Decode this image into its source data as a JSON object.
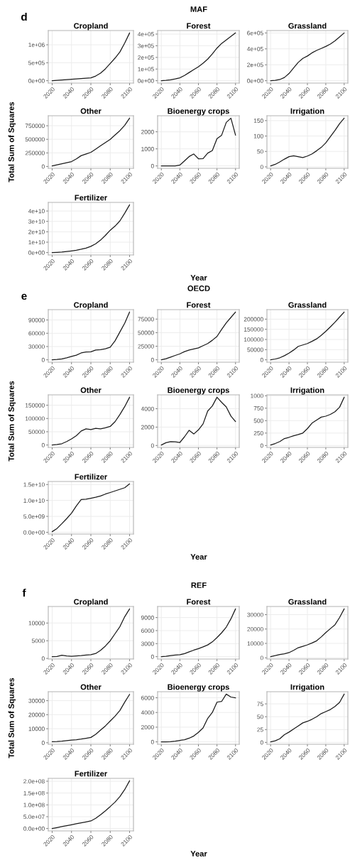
{
  "chart_data": [
    {
      "type": "line",
      "title": "Cropland",
      "annotations": [
        "d",
        "MAF"
      ],
      "x": [
        2020,
        2025,
        2030,
        2035,
        2040,
        2045,
        2050,
        2055,
        2060,
        2065,
        2070,
        2075,
        2080,
        2085,
        2090,
        2095,
        2100
      ],
      "series": [
        {
          "color": "#1a1a1a",
          "values": [
            0,
            10000,
            20000,
            30000,
            40000,
            50000,
            60000,
            70000,
            80000,
            130000,
            210000,
            330000,
            480000,
            630000,
            800000,
            1050000,
            1330000
          ]
        }
      ],
      "xlim": [
        2016,
        2104
      ],
      "xticks": [
        2020,
        2040,
        2060,
        2080,
        2100
      ],
      "ylim": [
        -66500,
        1396500
      ],
      "yticks": [
        {
          "value": 0,
          "label": "0e+00"
        },
        {
          "value": 500000,
          "label": "5e+05"
        },
        {
          "value": 1000000,
          "label": "1e+06"
        }
      ],
      "grid": true
    },
    {
      "type": "line",
      "title": "Forest",
      "x": [
        2020,
        2025,
        2030,
        2035,
        2040,
        2045,
        2050,
        2055,
        2060,
        2065,
        2070,
        2075,
        2080,
        2085,
        2090,
        2095,
        2100
      ],
      "series": [
        {
          "color": "#1a1a1a",
          "values": [
            0,
            3000,
            8000,
            15000,
            25000,
            45000,
            70000,
            95000,
            120000,
            150000,
            185000,
            230000,
            280000,
            320000,
            350000,
            380000,
            410000
          ]
        }
      ],
      "xlim": [
        2016,
        2104
      ],
      "xticks": [
        2020,
        2040,
        2060,
        2080,
        2100
      ],
      "ylim": [
        -20500,
        430500
      ],
      "yticks": [
        {
          "value": 0,
          "label": "0e+00"
        },
        {
          "value": 100000,
          "label": "1e+05"
        },
        {
          "value": 200000,
          "label": "2e+05"
        },
        {
          "value": 300000,
          "label": "3e+05"
        },
        {
          "value": 400000,
          "label": "4e+05"
        }
      ],
      "grid": true
    },
    {
      "type": "line",
      "title": "Grassland",
      "x": [
        2020,
        2025,
        2030,
        2035,
        2040,
        2045,
        2050,
        2055,
        2060,
        2065,
        2070,
        2075,
        2080,
        2085,
        2090,
        2095,
        2100
      ],
      "series": [
        {
          "color": "#1a1a1a",
          "values": [
            0,
            5000,
            15000,
            40000,
            90000,
            160000,
            230000,
            280000,
            310000,
            350000,
            380000,
            405000,
            430000,
            460000,
            500000,
            550000,
            600000
          ]
        }
      ],
      "xlim": [
        2016,
        2104
      ],
      "xticks": [
        2020,
        2040,
        2060,
        2080,
        2100
      ],
      "ylim": [
        -30000,
        630000
      ],
      "yticks": [
        {
          "value": 0,
          "label": "0e+00"
        },
        {
          "value": 200000,
          "label": "2e+05"
        },
        {
          "value": 400000,
          "label": "4e+05"
        },
        {
          "value": 600000,
          "label": "6e+05"
        }
      ],
      "grid": true
    },
    {
      "type": "line",
      "title": "Other",
      "ylabel": "Total Sum of Squares",
      "x": [
        2020,
        2025,
        2030,
        2035,
        2040,
        2045,
        2050,
        2055,
        2060,
        2065,
        2070,
        2075,
        2080,
        2085,
        2090,
        2095,
        2100
      ],
      "series": [
        {
          "color": "#1a1a1a",
          "values": [
            10000,
            30000,
            50000,
            70000,
            90000,
            140000,
            200000,
            230000,
            260000,
            320000,
            380000,
            440000,
            500000,
            580000,
            660000,
            760000,
            890000
          ]
        }
      ],
      "xlim": [
        2016,
        2104
      ],
      "xticks": [
        2020,
        2040,
        2060,
        2080,
        2100
      ],
      "ylim": [
        -34000,
        934000
      ],
      "yticks": [
        0,
        250000,
        500000,
        750000
      ],
      "grid": true
    },
    {
      "type": "line",
      "title": "Bioenergy crops",
      "x": [
        2020,
        2025,
        2030,
        2035,
        2040,
        2045,
        2050,
        2055,
        2060,
        2065,
        2070,
        2075,
        2080,
        2085,
        2090,
        2095,
        2100
      ],
      "series": [
        {
          "color": "#1a1a1a",
          "values": [
            0,
            0,
            0,
            0,
            50,
            300,
            550,
            700,
            420,
            430,
            750,
            900,
            1600,
            1800,
            2550,
            2800,
            1800
          ]
        }
      ],
      "xlim": [
        2016,
        2104
      ],
      "xticks": [
        2020,
        2040,
        2060,
        2080,
        2100
      ],
      "ylim": [
        -140,
        2940
      ],
      "yticks": [
        0,
        1000,
        2000
      ],
      "grid": true
    },
    {
      "type": "line",
      "title": "Irrigation",
      "x": [
        2020,
        2025,
        2030,
        2035,
        2040,
        2045,
        2050,
        2055,
        2060,
        2065,
        2070,
        2075,
        2080,
        2085,
        2090,
        2095,
        2100
      ],
      "series": [
        {
          "color": "#1a1a1a",
          "values": [
            3,
            8,
            16,
            25,
            33,
            36,
            33,
            30,
            35,
            42,
            52,
            63,
            78,
            98,
            118,
            140,
            158
          ]
        }
      ],
      "xlim": [
        2016,
        2104
      ],
      "xticks": [
        2020,
        2040,
        2060,
        2080,
        2100
      ],
      "ylim": [
        -4.75,
        165.75
      ],
      "yticks": [
        0,
        50,
        100,
        150
      ],
      "grid": true
    },
    {
      "type": "line",
      "title": "Fertilizer",
      "annotations": [
        "Year"
      ],
      "x": [
        2020,
        2025,
        2030,
        2035,
        2040,
        2045,
        2050,
        2055,
        2060,
        2065,
        2070,
        2075,
        2080,
        2085,
        2090,
        2095,
        2100
      ],
      "series": [
        {
          "color": "#1a1a1a",
          "values": [
            0,
            200000000,
            500000000,
            1000000000,
            1600000000,
            2300000000,
            3200000000,
            4300000000,
            6000000000,
            8500000000,
            12000000000,
            16500000000,
            21500000000,
            25500000000,
            30500000000,
            38000000000,
            46000000000
          ]
        }
      ],
      "xlim": [
        2016,
        2104
      ],
      "xticks": [
        2020,
        2040,
        2060,
        2080,
        2100
      ],
      "ylim": [
        -2300000000,
        48300000000
      ],
      "yticks": [
        {
          "value": 0,
          "label": "0e+00"
        },
        {
          "value": 10000000000,
          "label": "1e+10"
        },
        {
          "value": 20000000000,
          "label": "2e+10"
        },
        {
          "value": 30000000000,
          "label": "3e+10"
        },
        {
          "value": 40000000000,
          "label": "4e+10"
        }
      ],
      "grid": true
    },
    {
      "type": "line",
      "title": "Cropland",
      "annotations": [
        "e",
        "OECD"
      ],
      "x": [
        2020,
        2025,
        2030,
        2035,
        2040,
        2045,
        2050,
        2055,
        2060,
        2065,
        2070,
        2075,
        2080,
        2085,
        2090,
        2095,
        2100
      ],
      "series": [
        {
          "color": "#1a1a1a",
          "values": [
            0,
            800,
            2000,
            4500,
            7500,
            10500,
            15500,
            17500,
            18000,
            22000,
            23000,
            25000,
            28500,
            43000,
            63000,
            83000,
            108000
          ]
        }
      ],
      "xlim": [
        2016,
        2104
      ],
      "xticks": [
        2020,
        2040,
        2060,
        2080,
        2100
      ],
      "ylim": [
        -5400,
        113400
      ],
      "yticks": [
        0,
        30000,
        60000,
        90000
      ],
      "grid": true
    },
    {
      "type": "line",
      "title": "Forest",
      "x": [
        2020,
        2025,
        2030,
        2035,
        2040,
        2045,
        2050,
        2055,
        2060,
        2065,
        2070,
        2075,
        2080,
        2085,
        2090,
        2095,
        2100
      ],
      "series": [
        {
          "color": "#1a1a1a",
          "values": [
            0,
            2000,
            5000,
            8000,
            11000,
            15000,
            18000,
            20000,
            22000,
            26000,
            30000,
            36000,
            43000,
            56000,
            68000,
            78000,
            88000
          ]
        }
      ],
      "xlim": [
        2016,
        2104
      ],
      "xticks": [
        2020,
        2040,
        2060,
        2080,
        2100
      ],
      "ylim": [
        -4400,
        92400
      ],
      "yticks": [
        0,
        25000,
        50000,
        75000
      ],
      "grid": true
    },
    {
      "type": "line",
      "title": "Grassland",
      "x": [
        2020,
        2025,
        2030,
        2035,
        2040,
        2045,
        2050,
        2055,
        2060,
        2065,
        2070,
        2075,
        2080,
        2085,
        2090,
        2095,
        2100
      ],
      "series": [
        {
          "color": "#1a1a1a",
          "values": [
            0,
            4000,
            10000,
            20000,
            33000,
            48000,
            66000,
            73000,
            80000,
            91000,
            103000,
            120000,
            140000,
            162000,
            185000,
            210000,
            235000
          ]
        }
      ],
      "xlim": [
        2016,
        2104
      ],
      "xticks": [
        2020,
        2040,
        2060,
        2080,
        2100
      ],
      "ylim": [
        -11750,
        246750
      ],
      "yticks": [
        0,
        50000,
        100000,
        150000,
        200000
      ],
      "grid": true
    },
    {
      "type": "line",
      "title": "Other",
      "ylabel": "Total Sum of Squares",
      "x": [
        2020,
        2025,
        2030,
        2035,
        2040,
        2045,
        2050,
        2055,
        2060,
        2065,
        2070,
        2075,
        2080,
        2085,
        2090,
        2095,
        2100
      ],
      "series": [
        {
          "color": "#1a1a1a",
          "values": [
            0,
            2000,
            5000,
            13000,
            23000,
            35000,
            53000,
            61000,
            58000,
            63000,
            61000,
            65000,
            70000,
            88000,
            115000,
            145000,
            180000
          ]
        }
      ],
      "xlim": [
        2016,
        2104
      ],
      "xticks": [
        2020,
        2040,
        2060,
        2080,
        2100
      ],
      "ylim": [
        -9000,
        189000
      ],
      "yticks": [
        0,
        50000,
        100000,
        150000
      ],
      "grid": true
    },
    {
      "type": "line",
      "title": "Bioenergy crops",
      "x": [
        2020,
        2025,
        2030,
        2035,
        2040,
        2045,
        2050,
        2055,
        2060,
        2065,
        2070,
        2075,
        2080,
        2085,
        2090,
        2095,
        2100
      ],
      "series": [
        {
          "color": "#1a1a1a",
          "values": [
            50,
            300,
            420,
            400,
            330,
            950,
            1650,
            1250,
            1700,
            2350,
            3750,
            4300,
            5250,
            4700,
            4200,
            3200,
            2600
          ]
        }
      ],
      "xlim": [
        2016,
        2104
      ],
      "xticks": [
        2020,
        2040,
        2060,
        2080,
        2100
      ],
      "ylim": [
        -210,
        5510
      ],
      "yticks": [
        0,
        2000,
        4000
      ],
      "grid": true
    },
    {
      "type": "line",
      "title": "Irrigation",
      "x": [
        2020,
        2025,
        2030,
        2035,
        2040,
        2045,
        2050,
        2055,
        2060,
        2065,
        2070,
        2075,
        2080,
        2085,
        2090,
        2095,
        2100
      ],
      "series": [
        {
          "color": "#1a1a1a",
          "values": [
            10,
            40,
            80,
            140,
            165,
            195,
            220,
            250,
            340,
            450,
            510,
            570,
            590,
            625,
            680,
            770,
            970
          ]
        }
      ],
      "xlim": [
        2016,
        2104
      ],
      "xticks": [
        2020,
        2040,
        2060,
        2080,
        2100
      ],
      "ylim": [
        -38,
        1018
      ],
      "yticks": [
        0,
        250,
        500,
        750,
        1000
      ],
      "grid": true
    },
    {
      "type": "line",
      "title": "Fertilizer",
      "annotations": [
        "Year"
      ],
      "x": [
        2020,
        2025,
        2030,
        2035,
        2040,
        2045,
        2050,
        2055,
        2060,
        2065,
        2070,
        2075,
        2080,
        2085,
        2090,
        2095,
        2100
      ],
      "series": [
        {
          "color": "#1a1a1a",
          "values": [
            200000000,
            1200000000,
            2700000000,
            4300000000,
            6000000000,
            8300000000,
            10300000000,
            10400000000,
            10700000000,
            11000000000,
            11400000000,
            12000000000,
            12500000000,
            13000000000,
            13500000000,
            14000000000,
            15200000000
          ]
        }
      ],
      "xlim": [
        2016,
        2104
      ],
      "xticks": [
        2020,
        2040,
        2060,
        2080,
        2100
      ],
      "ylim": [
        -550000000,
        15950000000
      ],
      "yticks": [
        {
          "value": 0,
          "label": "0.0e+00"
        },
        {
          "value": 5000000000,
          "label": "5.0e+09"
        },
        {
          "value": 10000000000,
          "label": "1.0e+10"
        },
        {
          "value": 15000000000,
          "label": "1.5e+10"
        }
      ],
      "grid": true
    },
    {
      "type": "line",
      "title": "Cropland",
      "annotations": [
        "f",
        "REF"
      ],
      "x": [
        2020,
        2025,
        2030,
        2035,
        2040,
        2045,
        2050,
        2055,
        2060,
        2065,
        2070,
        2075,
        2080,
        2085,
        2090,
        2095,
        2100
      ],
      "series": [
        {
          "color": "#1a1a1a",
          "values": [
            500,
            550,
            900,
            700,
            600,
            700,
            800,
            950,
            1050,
            1400,
            2300,
            3500,
            5000,
            7000,
            9000,
            11800,
            14000
          ]
        }
      ],
      "xlim": [
        2016,
        2104
      ],
      "xticks": [
        2020,
        2040,
        2060,
        2080,
        2100
      ],
      "ylim": [
        -175,
        14675
      ],
      "yticks": [
        0,
        5000,
        10000
      ],
      "grid": true
    },
    {
      "type": "line",
      "title": "Forest",
      "x": [
        2020,
        2025,
        2030,
        2035,
        2040,
        2045,
        2050,
        2055,
        2060,
        2065,
        2070,
        2075,
        2080,
        2085,
        2090,
        2095,
        2100
      ],
      "series": [
        {
          "color": "#1a1a1a",
          "values": [
            0,
            100,
            250,
            350,
            450,
            700,
            1100,
            1500,
            1850,
            2250,
            2700,
            3400,
            4400,
            5500,
            6800,
            8700,
            11000
          ]
        }
      ],
      "xlim": [
        2016,
        2104
      ],
      "xticks": [
        2020,
        2040,
        2060,
        2080,
        2100
      ],
      "ylim": [
        -550,
        11550
      ],
      "yticks": [
        0,
        3000,
        6000,
        9000
      ],
      "grid": true
    },
    {
      "type": "line",
      "title": "Grassland",
      "x": [
        2020,
        2025,
        2030,
        2035,
        2040,
        2045,
        2050,
        2055,
        2060,
        2065,
        2070,
        2075,
        2080,
        2085,
        2090,
        2095,
        2100
      ],
      "series": [
        {
          "color": "#1a1a1a",
          "values": [
            800,
            1500,
            2300,
            2800,
            3600,
            5200,
            7000,
            8000,
            9000,
            10300,
            11800,
            14500,
            17500,
            20300,
            23000,
            28000,
            34000
          ]
        }
      ],
      "xlim": [
        2016,
        2104
      ],
      "xticks": [
        2020,
        2040,
        2060,
        2080,
        2100
      ],
      "ylim": [
        -860,
        35660
      ],
      "yticks": [
        0,
        10000,
        20000,
        30000
      ],
      "grid": true
    },
    {
      "type": "line",
      "title": "Other",
      "ylabel": "Total Sum of Squares",
      "x": [
        2020,
        2025,
        2030,
        2035,
        2040,
        2045,
        2050,
        2055,
        2060,
        2065,
        2070,
        2075,
        2080,
        2085,
        2090,
        2095,
        2100
      ],
      "series": [
        {
          "color": "#1a1a1a",
          "values": [
            800,
            900,
            1100,
            1500,
            1900,
            2100,
            2600,
            3200,
            3800,
            6000,
            9000,
            12000,
            15500,
            19000,
            23000,
            29000,
            34500
          ]
        }
      ],
      "xlim": [
        2016,
        2104
      ],
      "xticks": [
        2020,
        2040,
        2060,
        2080,
        2100
      ],
      "ylim": [
        -1085,
        36385
      ],
      "yticks": [
        0,
        10000,
        20000,
        30000
      ],
      "grid": true
    },
    {
      "type": "line",
      "title": "Bioenergy crops",
      "x": [
        2020,
        2025,
        2030,
        2035,
        2040,
        2045,
        2050,
        2055,
        2060,
        2065,
        2070,
        2075,
        2080,
        2085,
        2090,
        2095,
        2100
      ],
      "series": [
        {
          "color": "#1a1a1a",
          "values": [
            0,
            0,
            30,
            100,
            200,
            300,
            500,
            800,
            1300,
            1900,
            3200,
            4000,
            5400,
            5500,
            6500,
            6100,
            6000
          ]
        }
      ],
      "xlim": [
        2016,
        2104
      ],
      "xticks": [
        2020,
        2040,
        2060,
        2080,
        2100
      ],
      "ylim": [
        -325,
        6825
      ],
      "yticks": [
        0,
        2000,
        4000,
        6000
      ],
      "grid": true
    },
    {
      "type": "line",
      "title": "Irrigation",
      "x": [
        2020,
        2025,
        2030,
        2035,
        2040,
        2045,
        2050,
        2055,
        2060,
        2065,
        2070,
        2075,
        2080,
        2085,
        2090,
        2095,
        2100
      ],
      "series": [
        {
          "color": "#1a1a1a",
          "values": [
            1,
            3,
            7,
            15,
            20,
            26,
            32,
            38,
            41,
            45,
            50,
            56,
            60,
            64,
            70,
            78,
            94
          ]
        }
      ],
      "xlim": [
        2016,
        2104
      ],
      "xticks": [
        2020,
        2040,
        2060,
        2080,
        2100
      ],
      "ylim": [
        -3.65,
        98.65
      ],
      "yticks": [
        0,
        25,
        50,
        75
      ],
      "grid": true
    },
    {
      "type": "line",
      "title": "Fertilizer",
      "annotations": [
        "Year"
      ],
      "x": [
        2020,
        2025,
        2030,
        2035,
        2040,
        2045,
        2050,
        2055,
        2060,
        2065,
        2070,
        2075,
        2080,
        2085,
        2090,
        2095,
        2100
      ],
      "series": [
        {
          "color": "#1a1a1a",
          "values": [
            0,
            4000000,
            8000000,
            12000000,
            16000000,
            20000000,
            24000000,
            28000000,
            32000000,
            43000000,
            58000000,
            75000000,
            93000000,
            112000000,
            135000000,
            165000000,
            202000000
          ]
        }
      ],
      "xlim": [
        2016,
        2104
      ],
      "xticks": [
        2020,
        2040,
        2060,
        2080,
        2100
      ],
      "ylim": [
        -10100000,
        212100000
      ],
      "yticks": [
        {
          "value": 0,
          "label": "0.0e+00"
        },
        {
          "value": 50000000,
          "label": "5.0e+07"
        },
        {
          "value": 100000000,
          "label": "1.0e+08"
        },
        {
          "value": 150000000,
          "label": "1.5e+08"
        },
        {
          "value": 200000000,
          "label": "2.0e+08"
        }
      ],
      "grid": true
    }
  ]
}
